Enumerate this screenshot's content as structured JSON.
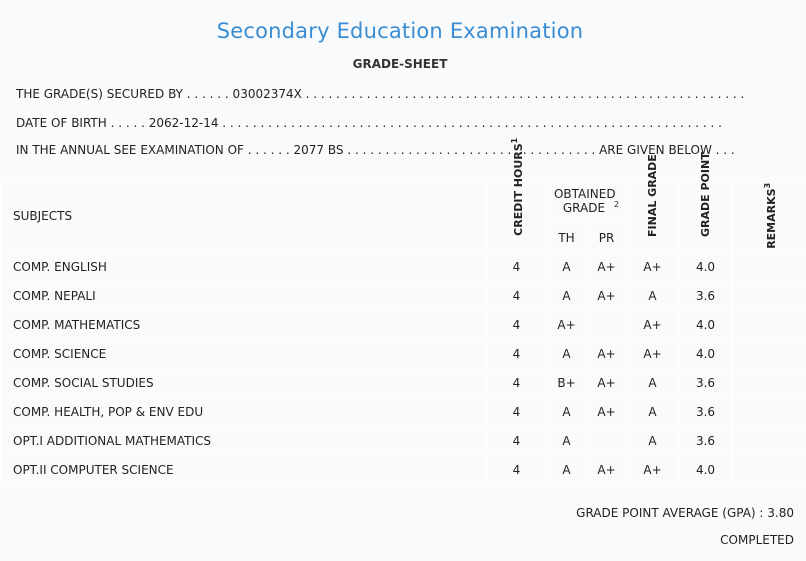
{
  "header": {
    "title": "Secondary Education Examination",
    "subtitle": "GRADE-SHEET"
  },
  "info": {
    "line1": "THE GRADE(S) SECURED BY . . . . . . 03002374X . . . . . . . . . . . . . . . . . . . . . . . . . . . . . . . . . . . . . . . . . . . . . . . . . . . . . . . . . .",
    "line2": "DATE OF BIRTH . . . . . 2062-12-14 . . . . . . . . . . . . . . . . . . . . . . . . . . . . . . . . . . . . . . . . . . . . . . . . . . . . . . . . . . . . . . . . . .",
    "line3": "IN THE ANNUAL SEE EXAMINATION OF . . . . . . 2077 BS . . . . . . . . . . . . . . . . . . . . . . . . . . . . . . . . . ARE GIVEN BELOW . . ."
  },
  "table": {
    "headers": {
      "subjects": "SUBJECTS",
      "credit_hours": "CREDIT HOURS",
      "credit_sup": "1",
      "obtained_grade": "OBTAINED GRADE",
      "obtained_sup": "2",
      "th": "TH",
      "pr": "PR",
      "final_grade": "FINAL GRADE",
      "grade_point": "GRADE POINT",
      "remarks": "REMARKS",
      "remarks_sup": "3"
    },
    "rows": [
      {
        "subject": "COMP. ENGLISH",
        "credit": "4",
        "th": "A",
        "pr": "A+",
        "final": "A+",
        "gp": "4.0",
        "remarks": ""
      },
      {
        "subject": "COMP. NEPALI",
        "credit": "4",
        "th": "A",
        "pr": "A+",
        "final": "A",
        "gp": "3.6",
        "remarks": ""
      },
      {
        "subject": "COMP. MATHEMATICS",
        "credit": "4",
        "th": "A+",
        "pr": "",
        "final": "A+",
        "gp": "4.0",
        "remarks": ""
      },
      {
        "subject": "COMP. SCIENCE",
        "credit": "4",
        "th": "A",
        "pr": "A+",
        "final": "A+",
        "gp": "4.0",
        "remarks": ""
      },
      {
        "subject": "COMP. SOCIAL STUDIES",
        "credit": "4",
        "th": "B+",
        "pr": "A+",
        "final": "A",
        "gp": "3.6",
        "remarks": ""
      },
      {
        "subject": "COMP. HEALTH, POP & ENV EDU",
        "credit": "4",
        "th": "A",
        "pr": "A+",
        "final": "A",
        "gp": "3.6",
        "remarks": ""
      },
      {
        "subject": "OPT.I ADDITIONAL MATHEMATICS",
        "credit": "4",
        "th": "A",
        "pr": "",
        "final": "A",
        "gp": "3.6",
        "remarks": ""
      },
      {
        "subject": "OPT.II COMPUTER SCIENCE",
        "credit": "4",
        "th": "A",
        "pr": "A+",
        "final": "A+",
        "gp": "4.0",
        "remarks": ""
      }
    ]
  },
  "footer": {
    "gpa": "GRADE POINT AVERAGE (GPA) : 3.80",
    "status": "COMPLETED"
  }
}
